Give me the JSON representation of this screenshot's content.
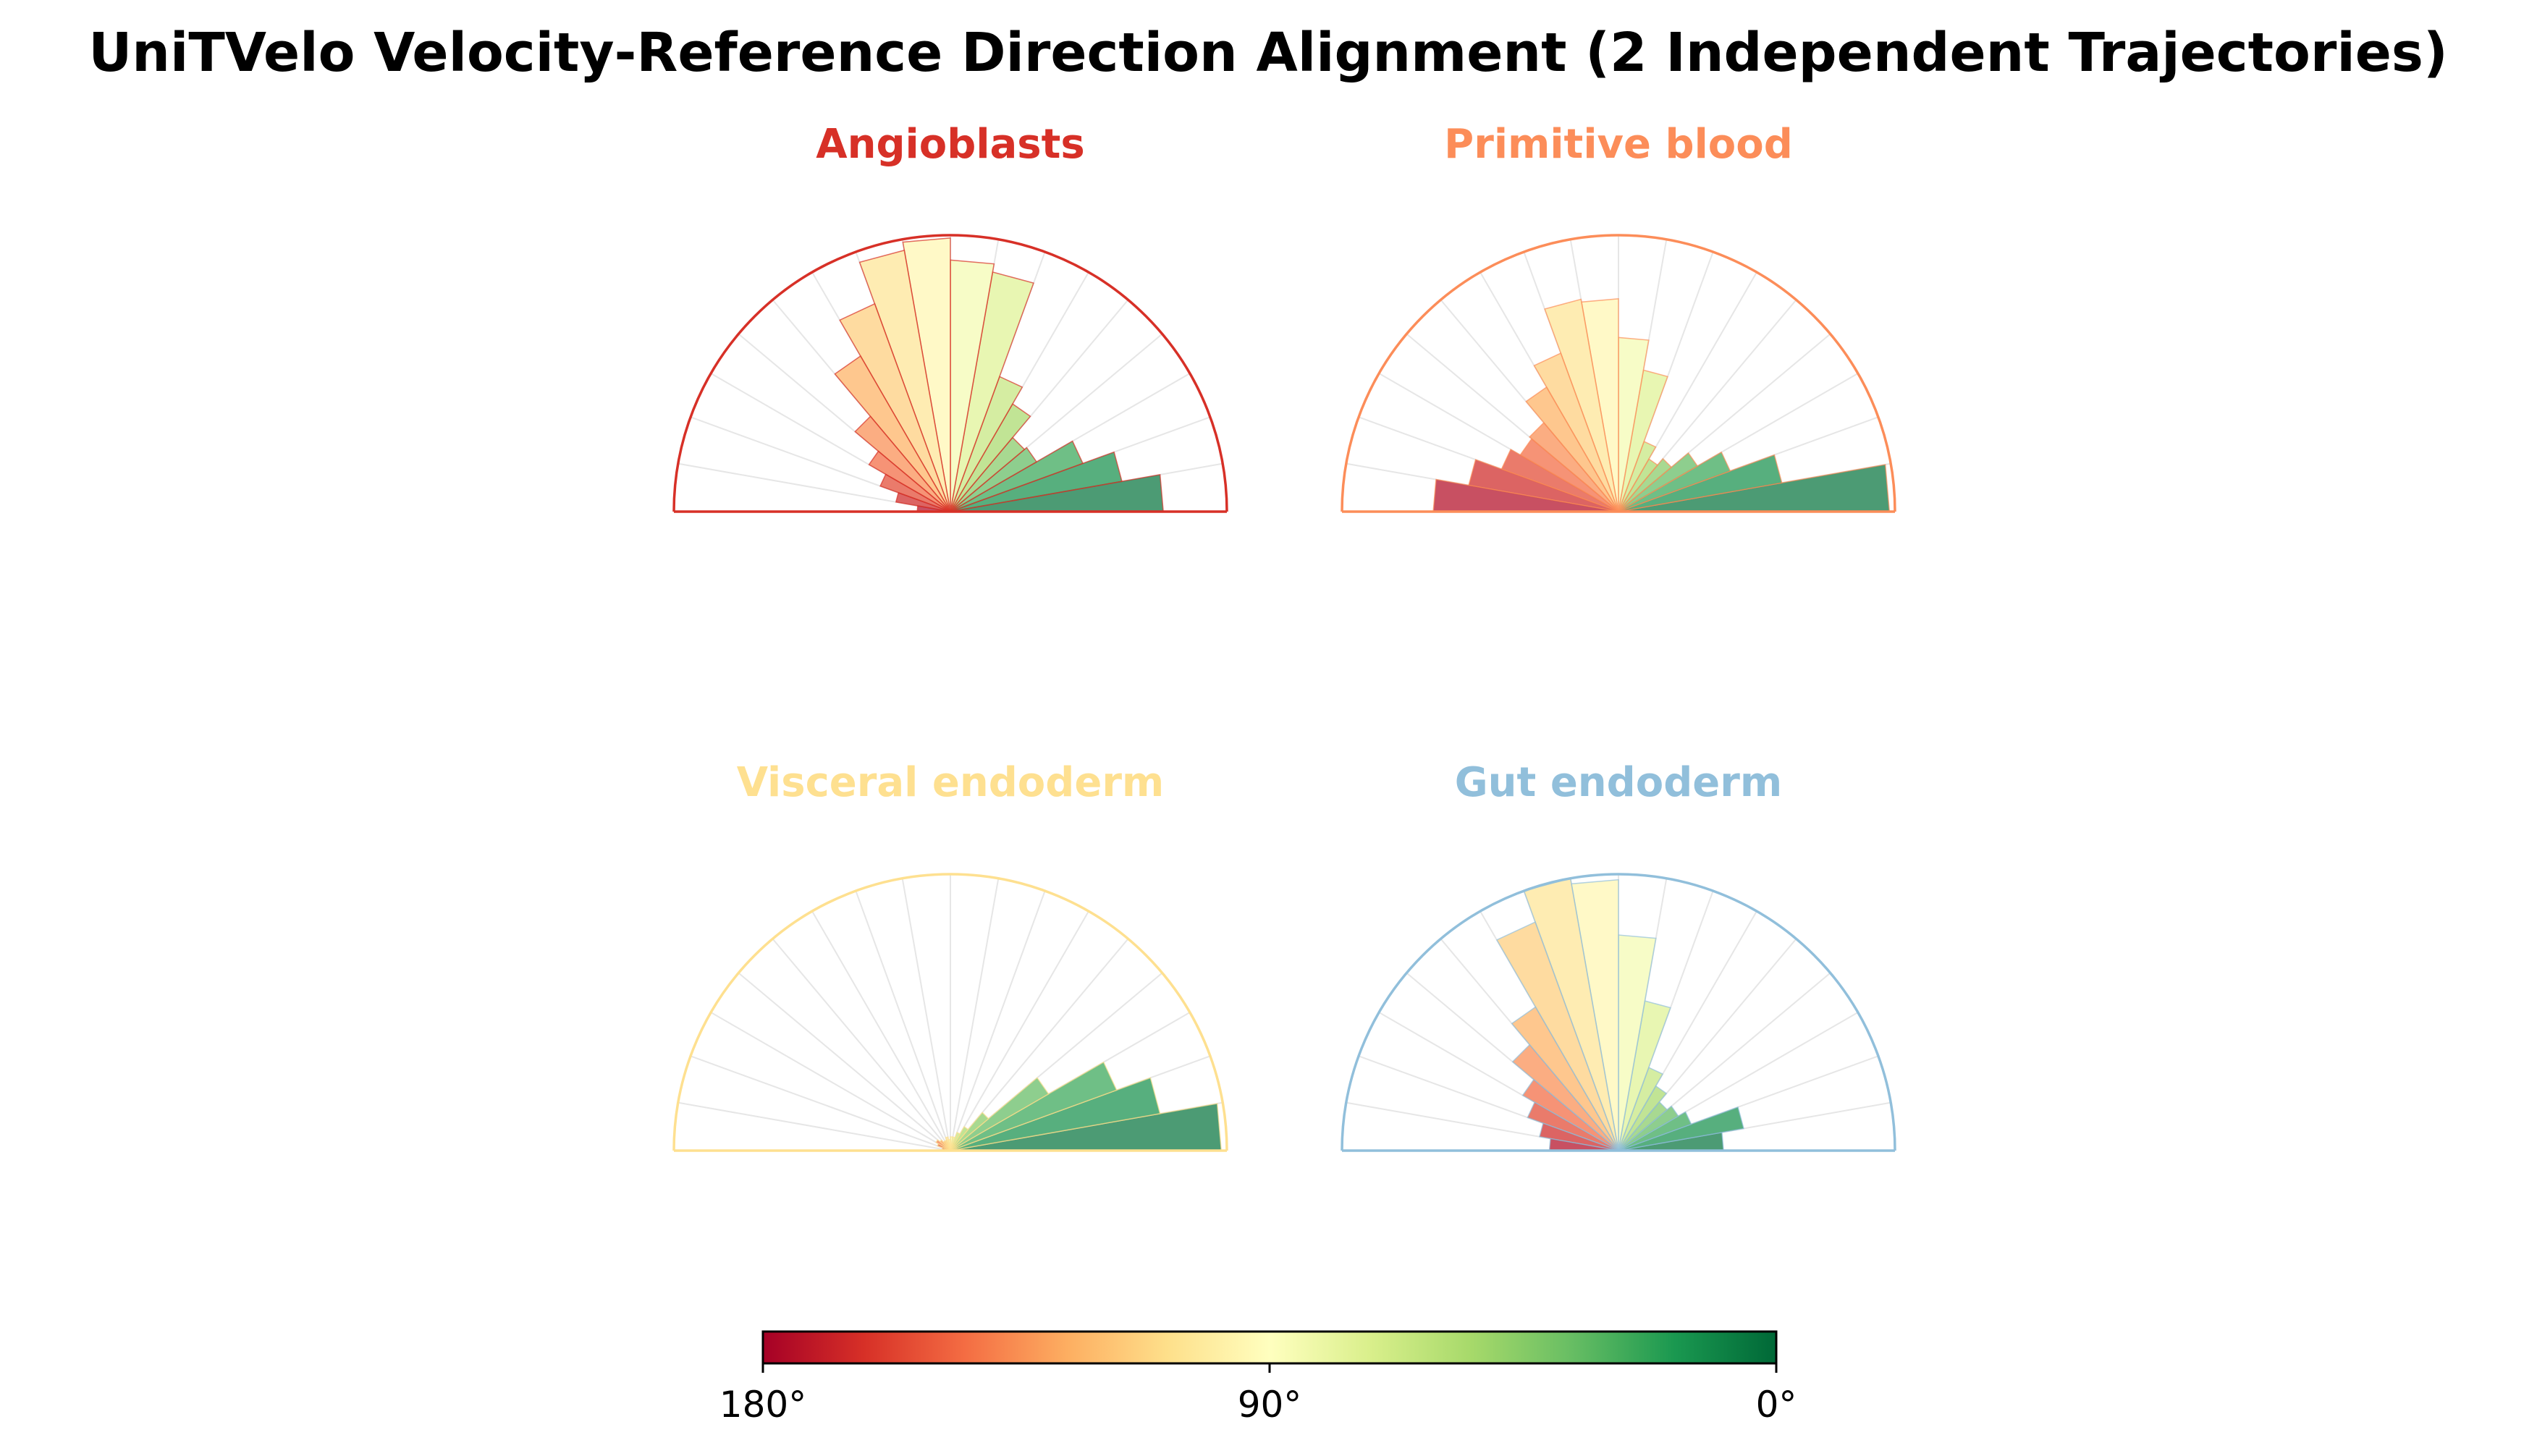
{
  "title": "UniTVelo Velocity-Reference Direction Alignment (2 Independent Trajectories)",
  "chart_data": [
    {
      "type": "polar-half-histogram",
      "title": "Angioblasts",
      "title_color": "#d73027",
      "angle_unit": "degrees",
      "angle_range": [
        0,
        180
      ],
      "bin_width": 10,
      "bin_centers": [
        5,
        15,
        25,
        35,
        45,
        55,
        65,
        75,
        85,
        95,
        105,
        115,
        125,
        135,
        145,
        155,
        165,
        175
      ],
      "values": [
        0.77,
        0.63,
        0.51,
        0.36,
        0.35,
        0.45,
        0.52,
        0.88,
        0.91,
        0.99,
        0.96,
        0.8,
        0.65,
        0.45,
        0.34,
        0.27,
        0.2,
        0.12
      ],
      "max_value": 1.0
    },
    {
      "type": "polar-half-histogram",
      "title": "Primitive blood",
      "title_color": "#fc8d59",
      "angle_unit": "degrees",
      "angle_range": [
        0,
        180
      ],
      "bin_width": 10,
      "bin_centers": [
        5,
        15,
        25,
        35,
        45,
        55,
        65,
        75,
        85,
        95,
        105,
        115,
        125,
        135,
        145,
        155,
        165,
        175
      ],
      "values": [
        0.98,
        0.6,
        0.43,
        0.33,
        0.25,
        0.22,
        0.27,
        0.52,
        0.63,
        0.77,
        0.78,
        0.61,
        0.52,
        0.42,
        0.41,
        0.45,
        0.55,
        0.67
      ],
      "max_value": 1.0
    },
    {
      "type": "polar-half-histogram",
      "title": "Visceral endoderm",
      "title_color": "#fee090",
      "angle_unit": "degrees",
      "angle_range": [
        0,
        180
      ],
      "bin_width": 10,
      "bin_centers": [
        5,
        15,
        25,
        35,
        45,
        55,
        65,
        75,
        85,
        95,
        105,
        115,
        125,
        135,
        145,
        155,
        165,
        175
      ],
      "values": [
        0.98,
        0.77,
        0.64,
        0.41,
        0.18,
        0.1,
        0.07,
        0.05,
        0.05,
        0.04,
        0.05,
        0.04,
        0.04,
        0.05,
        0.06,
        0.05,
        0.03,
        0.02
      ],
      "max_value": 1.0
    },
    {
      "type": "polar-half-histogram",
      "title": "Gut endoderm",
      "title_color": "#91bfdb",
      "angle_unit": "degrees",
      "angle_range": [
        0,
        180
      ],
      "bin_width": 10,
      "bin_centers": [
        5,
        15,
        25,
        35,
        45,
        55,
        65,
        75,
        85,
        95,
        105,
        115,
        125,
        135,
        145,
        155,
        165,
        175
      ],
      "values": [
        0.38,
        0.46,
        0.28,
        0.25,
        0.23,
        0.27,
        0.32,
        0.55,
        0.78,
        0.98,
        1.0,
        0.88,
        0.6,
        0.5,
        0.4,
        0.35,
        0.29,
        0.25
      ],
      "max_value": 1.0
    }
  ],
  "colorbar": {
    "colormap": "RdYlGn",
    "direction": "180 to 0",
    "range": [
      0,
      180
    ],
    "ticks": [
      {
        "value": 180,
        "label": "180°"
      },
      {
        "value": 90,
        "label": "90°"
      },
      {
        "value": 0,
        "label": "0°"
      }
    ]
  }
}
